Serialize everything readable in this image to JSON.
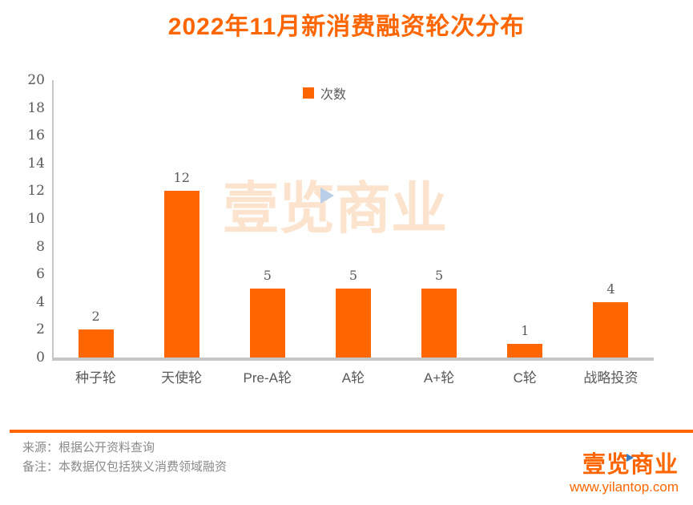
{
  "title": "2022年11月新消费融资轮次分布",
  "chart_data": {
    "type": "bar",
    "title": "2022年11月新消费融资轮次分布",
    "categories": [
      "种子轮",
      "天使轮",
      "Pre-A轮",
      "A轮",
      "A+轮",
      "C轮",
      "战略投资"
    ],
    "series": [
      {
        "name": "次数",
        "values": [
          2,
          12,
          5,
          5,
          5,
          1,
          4
        ]
      }
    ],
    "xlabel": "",
    "ylabel": "",
    "ylim": [
      0,
      20
    ],
    "ytick_step": 2,
    "grid": false,
    "legend_position": "top-center",
    "bar_color": "#FF6600",
    "data_labels": true
  },
  "legend": {
    "label": "次数"
  },
  "watermark": {
    "text": "壹览商业",
    "icon": "play-triangle-icon"
  },
  "footer": {
    "source": "来源：根据公开资料查询",
    "note": "备注：本数据仅包括狭义消费领域融资",
    "brand": "壹览商业",
    "url": "www.yilantop.com"
  },
  "colors": {
    "accent_orange": "#FF6600",
    "axis_gray": "#C6C6C6",
    "label_gray": "#595959",
    "footer_gray": "#8A8A8A",
    "watermark_orange": "#FCE3CD",
    "watermark_blue": "#B9CFE8",
    "logo_blue": "#3E7CC0"
  }
}
